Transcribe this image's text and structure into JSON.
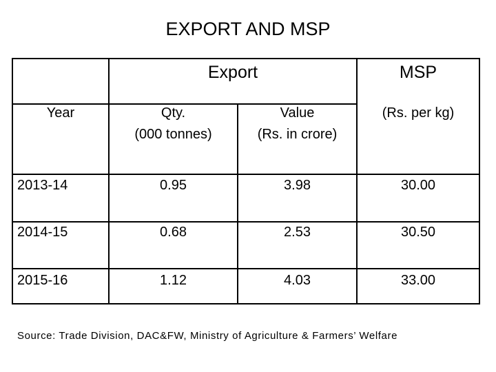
{
  "title": "EXPORT  AND MSP",
  "table": {
    "group_headers": {
      "export": "Export",
      "msp": "MSP"
    },
    "column_headers": {
      "year": "Year",
      "qty_line1": "Qty.",
      "qty_line2": "(000 tonnes)",
      "value_line1": "Value",
      "value_line2": "(Rs. in crore)",
      "msp_unit": "(Rs. per kg)"
    },
    "rows": [
      {
        "year": "2013-14",
        "qty": "0.95",
        "value": "3.98",
        "msp": "30.00"
      },
      {
        "year": "2014-15",
        "qty": "0.68",
        "value": "2.53",
        "msp": "30.50"
      },
      {
        "year": "2015-16",
        "qty": "1.12",
        "value": "4.03",
        "msp": "33.00"
      }
    ]
  },
  "source": "Source: Trade Division, DAC&FW, Ministry of Agriculture & Farmers’ Welfare"
}
